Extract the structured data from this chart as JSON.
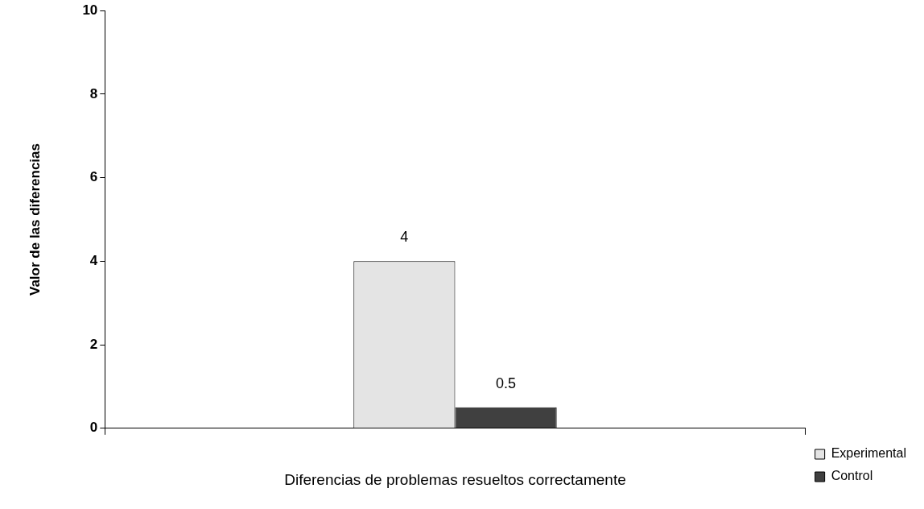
{
  "chart_data": {
    "type": "bar",
    "xlabel": "Diferencias de problemas resueltos correctamente",
    "ylabel": "Valor de las diferencias",
    "categories": [
      null
    ],
    "series": [
      {
        "name": "Experimental",
        "color": "#e4e4e4",
        "values": [
          4
        ]
      },
      {
        "name": "Control",
        "color": "#404040",
        "values": [
          0.5
        ]
      }
    ],
    "ylim": [
      0,
      10
    ],
    "yticks": [
      0,
      2,
      4,
      6,
      8,
      10
    ],
    "grid": false,
    "legend": "bottom right",
    "data_labels": true
  }
}
